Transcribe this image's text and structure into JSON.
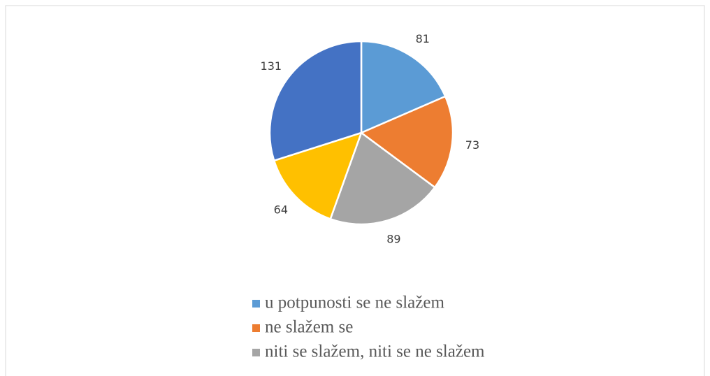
{
  "chart_data": {
    "type": "pie",
    "categories": [
      "u potpunosti se ne slažem",
      "ne slažem se",
      "niti se slažem, niti se ne slažem",
      null,
      null
    ],
    "values": [
      81,
      73,
      89,
      64,
      131
    ],
    "colors": [
      "#5b9bd5",
      "#ed7d31",
      "#a5a5a5",
      "#ffc000",
      "#4472c4"
    ],
    "legend": "bottom"
  }
}
